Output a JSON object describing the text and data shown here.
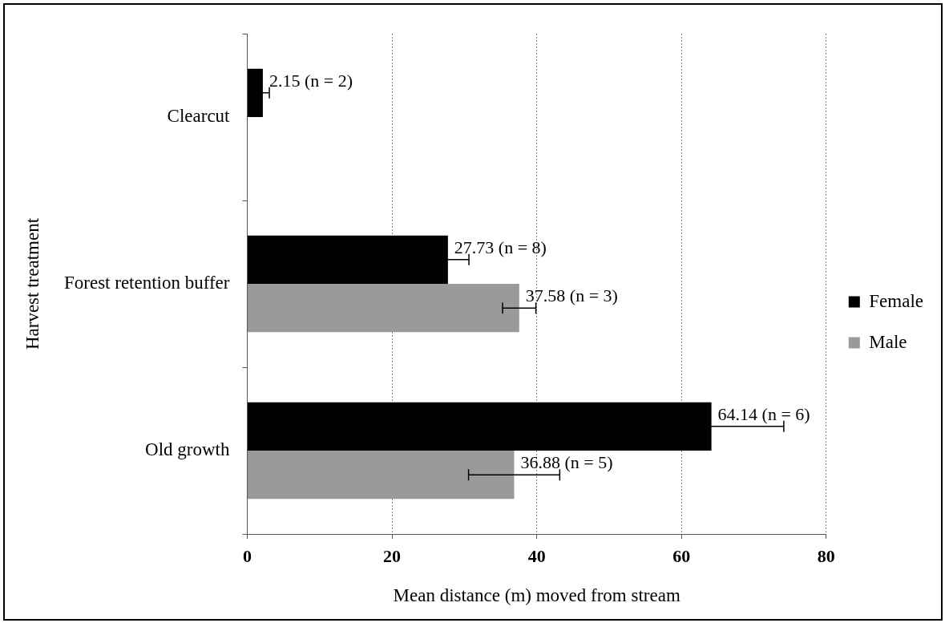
{
  "chart_data": {
    "type": "bar",
    "orientation": "horizontal",
    "xlabel": "Mean distance (m) moved from stream",
    "ylabel": "Harvest treatment",
    "categories": [
      "Clearcut",
      "Forest retention buffer",
      "Old growth"
    ],
    "series": [
      {
        "name": "Female",
        "color": "#000000",
        "values": [
          2.15,
          27.73,
          64.14
        ],
        "errors": [
          0.9,
          2.9,
          10.0
        ],
        "value_labels": [
          "2.15 (n = 2)",
          "27.73 (n = 8)",
          "64.14 (n = 6)"
        ]
      },
      {
        "name": "Male",
        "color": "#9a9a9a",
        "values": [
          null,
          37.58,
          36.88
        ],
        "errors": [
          null,
          2.3,
          6.3
        ],
        "value_labels": [
          null,
          "37.58 (n = 3)",
          "36.88 (n = 5)"
        ]
      }
    ],
    "xlim": [
      0,
      80
    ],
    "xticks": [
      0,
      20,
      40,
      60,
      80
    ],
    "grid": "x",
    "legend": "right"
  }
}
